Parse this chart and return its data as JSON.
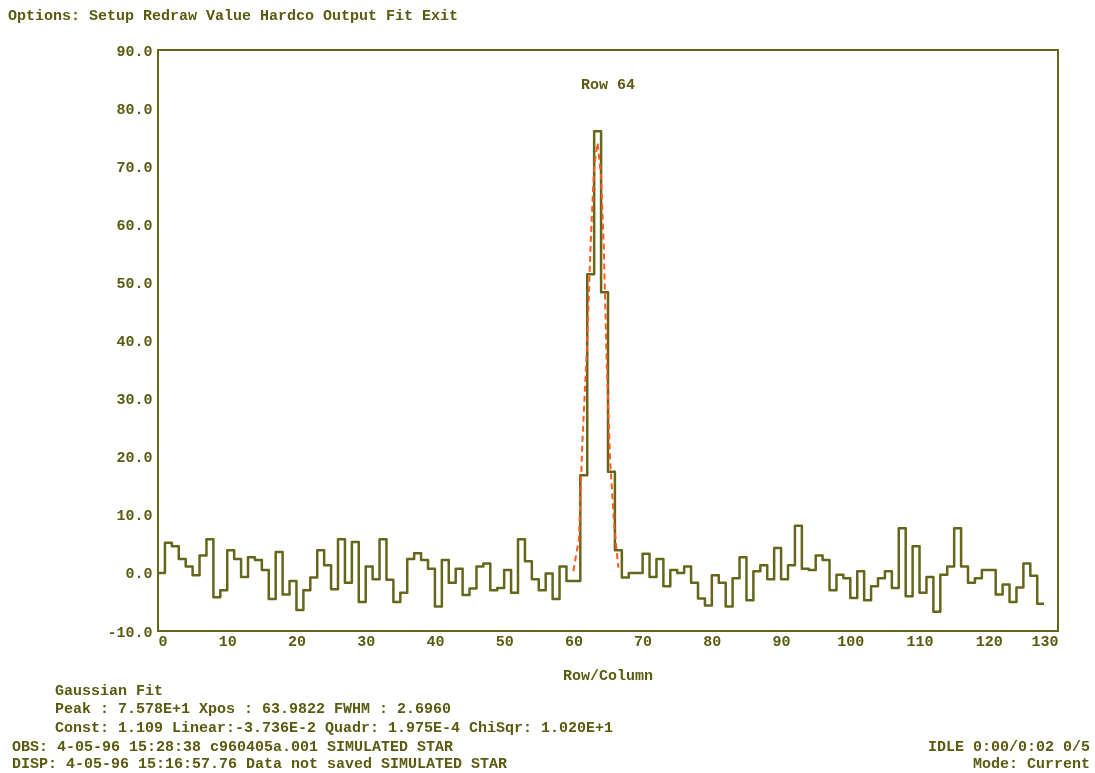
{
  "chart_data": {
    "type": "histogram",
    "title": "Row 64",
    "xlabel": "Row/Column",
    "xlim": [
      0,
      130
    ],
    "ylim": [
      -10,
      90
    ],
    "xticks": [
      0,
      10,
      20,
      30,
      40,
      50,
      60,
      70,
      80,
      90,
      100,
      110,
      120,
      130
    ],
    "yticks": [
      {
        "value": -10,
        "label": "-10.0"
      },
      {
        "value": 0,
        "label": "0.0"
      },
      {
        "value": 10,
        "label": "10.0"
      },
      {
        "value": 20,
        "label": "20.0"
      },
      {
        "value": 30,
        "label": "30.0"
      },
      {
        "value": 40,
        "label": "40.0"
      },
      {
        "value": 50,
        "label": "50.0"
      },
      {
        "value": 60,
        "label": "60.0"
      },
      {
        "value": 70,
        "label": "70.0"
      },
      {
        "value": 80,
        "label": "80.0"
      },
      {
        "value": 90,
        "label": "90.0"
      }
    ],
    "grid": false,
    "series": [
      {
        "color": "#66661a",
        "bins": [
          0,
          1,
          2,
          3,
          4,
          5,
          6,
          7,
          8,
          9,
          10,
          11,
          12,
          13,
          14,
          15,
          16,
          17,
          18,
          19,
          20,
          21,
          22,
          23,
          24,
          25,
          26,
          27,
          28,
          29,
          30,
          31,
          32,
          33,
          34,
          35,
          36,
          37,
          38,
          39,
          40,
          41,
          42,
          43,
          44,
          45,
          46,
          47,
          48,
          49,
          50,
          51,
          52,
          53,
          54,
          55,
          56,
          57,
          58,
          59,
          60,
          61,
          62,
          63,
          64,
          65,
          66,
          67,
          68,
          69,
          70,
          71,
          72,
          73,
          74,
          75,
          76,
          77,
          78,
          79,
          80,
          81,
          82,
          83,
          84,
          85,
          86,
          87,
          88,
          89,
          90,
          91,
          92,
          93,
          94,
          95,
          96,
          97,
          98,
          99,
          100,
          101,
          102,
          103,
          104,
          105,
          106,
          107,
          108,
          109,
          110,
          111,
          112,
          113,
          114,
          115,
          116,
          117,
          118,
          119,
          120,
          121,
          122,
          123,
          124,
          125,
          126,
          127,
          128
        ],
        "values": [
          0.0,
          5.2,
          4.6,
          2.4,
          1.1,
          -0.4,
          3.0,
          5.8,
          -4.2,
          -3.0,
          3.9,
          2.4,
          -0.7,
          2.7,
          2.2,
          0.5,
          -4.5,
          3.6,
          -3.7,
          -1.4,
          -6.4,
          -3.0,
          -0.8,
          3.9,
          1.3,
          -2.8,
          5.8,
          -1.7,
          5.3,
          -5.0,
          1.1,
          -1.1,
          5.8,
          -1.2,
          -5.0,
          -3.4,
          2.4,
          3.4,
          2.2,
          0.7,
          -5.8,
          2.2,
          -1.7,
          0.7,
          -3.8,
          -2.7,
          1.1,
          1.6,
          -3.0,
          -2.6,
          0.5,
          -3.4,
          5.8,
          2.0,
          -1.1,
          -3.0,
          -0.1,
          -4.5,
          1.1,
          -1.4,
          -1.4,
          16.8,
          51.4,
          76.0,
          48.3,
          17.4,
          3.9,
          -0.8,
          0.0,
          0.0,
          3.3,
          -0.7,
          2.4,
          -2.3,
          0.5,
          0.0,
          1.1,
          -1.7,
          -4.4,
          -5.6,
          -0.4,
          -1.7,
          -5.8,
          -0.9,
          2.7,
          -4.7,
          0.3,
          1.3,
          -1.1,
          4.3,
          -1.1,
          1.3,
          8.1,
          0.7,
          0.5,
          3.0,
          2.2,
          -3.0,
          -0.3,
          -0.9,
          -4.3,
          0.3,
          -4.7,
          -2.3,
          -0.9,
          0.3,
          -2.6,
          7.7,
          -4.0,
          4.6,
          -3.4,
          -0.7,
          -6.7,
          -0.3,
          1.1,
          7.7,
          1.1,
          -1.7,
          -0.9,
          0.5,
          0.5,
          -3.7,
          -2.0,
          -5.0,
          -2.5,
          1.6,
          -0.5,
          -5.3
        ]
      },
      {
        "type": "line",
        "color": "#ff5a1f",
        "line_style": "dashed",
        "x": [
          60.0,
          60.8,
          61.3,
          62.0,
          62.5,
          63.0,
          63.5,
          64.0,
          64.4,
          64.8,
          65.3,
          65.9,
          66.5
        ],
        "values": [
          0.3,
          5.8,
          22.5,
          39.7,
          56.9,
          70.0,
          74.0,
          68.3,
          55.7,
          36.7,
          19.5,
          8.1,
          0.9
        ]
      }
    ],
    "annotations": [
      "Options:  Setup  Redraw  Value  Hardco  Output  Fit  Exit",
      "Gaussian Fit",
      "Peak :  7.578E+1 Xpos  : 63.9822 FWHM :  2.6960",
      "Const: 1.109    Linear:-3.736E-2 Quadr: 1.975E-4 ChiSqr: 1.020E+1",
      "OBS:  4-05-96 15:28:38 c960405a.001 SIMULATED STAR",
      "IDLE 0:00/0:02 0/5",
      "DISP: 4-05-96 15:16:57.76 Data not saved SIMULATED STAR",
      "Mode: Current"
    ]
  }
}
